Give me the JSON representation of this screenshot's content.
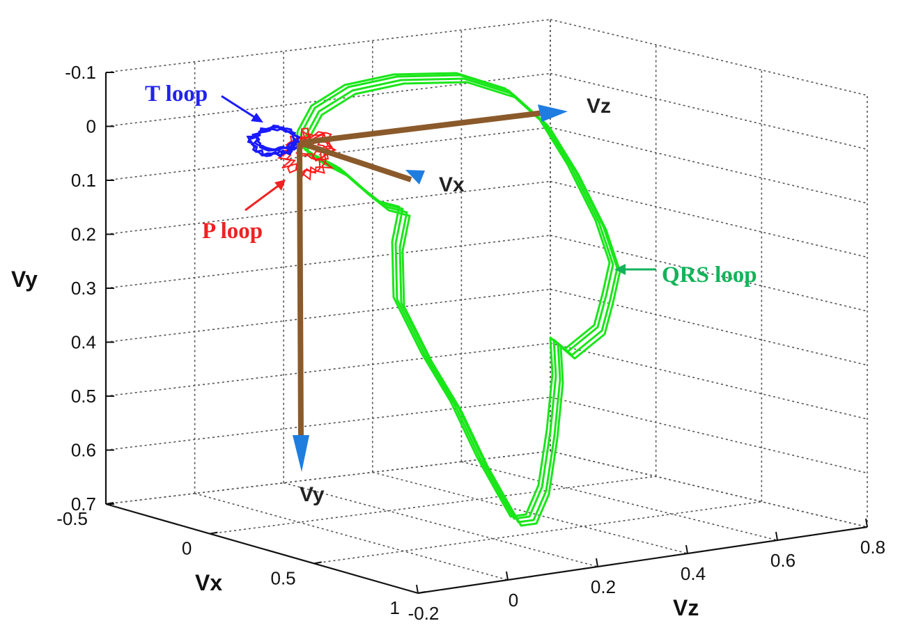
{
  "chart_data": {
    "type": "line3d",
    "title": "",
    "axes": {
      "x": {
        "label": "Vx",
        "range": [
          -0.5,
          1
        ],
        "ticks": [
          "-0.5",
          "0",
          "0.5",
          "1"
        ]
      },
      "y": {
        "label": "Vy",
        "range": [
          -0.1,
          0.7
        ],
        "reversed": true,
        "ticks": [
          "-0.1",
          "0",
          "0.1",
          "0.2",
          "0.3",
          "0.4",
          "0.5",
          "0.6",
          "0.7"
        ]
      },
      "z": {
        "label": "Vz",
        "range": [
          -0.2,
          0.8
        ],
        "ticks": [
          "-0.2",
          "0",
          "0.2",
          "0.4",
          "0.6",
          "0.8"
        ]
      }
    },
    "grid": true,
    "vector_axes": [
      {
        "name": "Vz",
        "color": "#8B5A2B"
      },
      {
        "name": "Vx",
        "color": "#8B5A2B"
      },
      {
        "name": "Vy",
        "color": "#8B5A2B"
      }
    ],
    "series": [
      {
        "name": "T loop",
        "color": "#1a1aff"
      },
      {
        "name": "P loop",
        "color": "#ff1a1a"
      },
      {
        "name": "QRS loop",
        "color": "#19e619"
      }
    ],
    "annotations": [
      {
        "text": "T loop",
        "color": "#2222ee"
      },
      {
        "text": "P loop",
        "color": "#ee2222"
      },
      {
        "text": "QRS loop",
        "color": "#13b35a"
      }
    ]
  }
}
